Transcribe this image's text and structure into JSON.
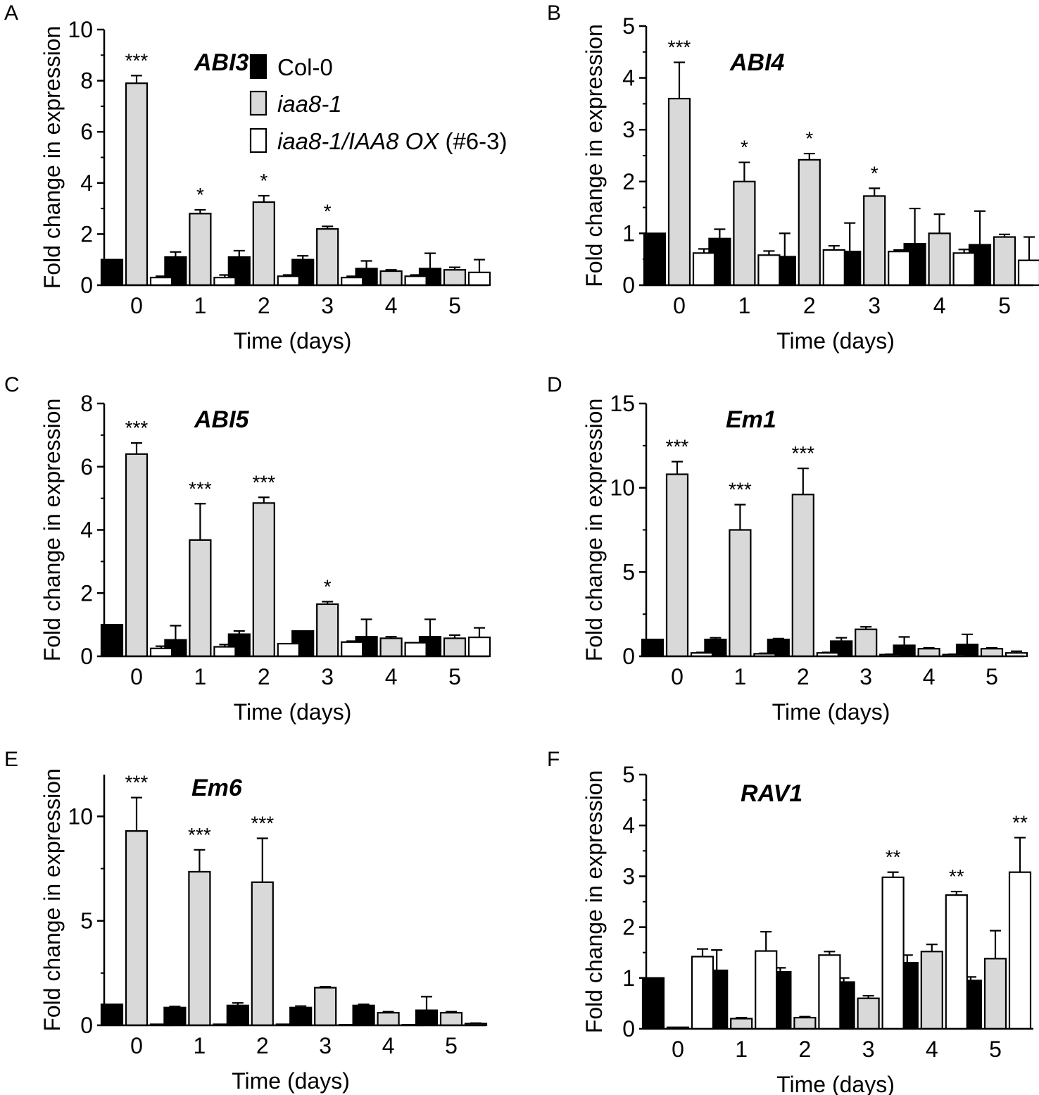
{
  "colors": {
    "col0": "#000000",
    "iaa8": "#d9d9d9",
    "ox": "#ffffff",
    "stroke": "#000000"
  },
  "legend": {
    "items": [
      {
        "label": "Col-0",
        "italic": false,
        "color_key": "col0"
      },
      {
        "label": "iaa8-1",
        "italic": true,
        "color_key": "iaa8"
      },
      {
        "label_italic": "iaa8-1/IAA8 OX",
        "label_plain": " (#6-3)",
        "color_key": "ox"
      }
    ]
  },
  "chart_data": [
    {
      "panel": "A",
      "type": "bar",
      "title": "ABI3",
      "xlabel": "Time (days)",
      "ylabel": "Fold change in expression",
      "categories": [
        "0",
        "1",
        "2",
        "3",
        "4",
        "5"
      ],
      "ylim": [
        0,
        10
      ],
      "yticks": [
        0,
        2,
        4,
        6,
        8,
        10
      ],
      "series": [
        {
          "name": "Col-0",
          "color_key": "col0",
          "values": [
            1.0,
            1.1,
            1.1,
            1.0,
            0.65,
            0.65
          ],
          "errors": [
            0.0,
            0.2,
            0.25,
            0.15,
            0.3,
            0.6
          ]
        },
        {
          "name": "iaa8-1",
          "color_key": "iaa8",
          "values": [
            7.9,
            2.8,
            3.25,
            2.2,
            0.55,
            0.6
          ],
          "errors": [
            0.3,
            0.15,
            0.25,
            0.1,
            0.05,
            0.1
          ]
        },
        {
          "name": "iaa8-1/IAA8 OX (#6-3)",
          "color_key": "ox",
          "values": [
            0.3,
            0.3,
            0.35,
            0.3,
            0.35,
            0.5
          ],
          "errors": [
            0.05,
            0.1,
            0.05,
            0.05,
            0.05,
            0.5
          ]
        }
      ],
      "significance": [
        {
          "x": "0",
          "label": "***"
        },
        {
          "x": "1",
          "label": "*"
        },
        {
          "x": "2",
          "label": "*"
        },
        {
          "x": "3",
          "label": "*"
        }
      ]
    },
    {
      "panel": "B",
      "type": "bar",
      "title": "ABI4",
      "xlabel": "Time (days)",
      "ylabel": "Fold change in expression",
      "categories": [
        "0",
        "1",
        "2",
        "3",
        "4",
        "5"
      ],
      "ylim": [
        0,
        5
      ],
      "yticks": [
        0,
        1,
        2,
        3,
        4,
        5
      ],
      "series": [
        {
          "name": "Col-0",
          "color_key": "col0",
          "values": [
            1.0,
            0.9,
            0.55,
            0.65,
            0.8,
            0.78
          ],
          "errors": [
            0.0,
            0.18,
            0.45,
            0.55,
            0.68,
            0.65
          ]
        },
        {
          "name": "iaa8-1",
          "color_key": "iaa8",
          "values": [
            3.6,
            2.0,
            2.42,
            1.72,
            1.0,
            0.93
          ],
          "errors": [
            0.7,
            0.37,
            0.12,
            0.15,
            0.37,
            0.05
          ]
        },
        {
          "name": "iaa8-1/IAA8 OX (#6-3)",
          "color_key": "ox",
          "values": [
            0.62,
            0.58,
            0.68,
            0.65,
            0.62,
            0.48
          ],
          "errors": [
            0.08,
            0.08,
            0.08,
            0.03,
            0.07,
            0.45
          ]
        }
      ],
      "significance": [
        {
          "x": "0",
          "label": "***"
        },
        {
          "x": "1",
          "label": "*"
        },
        {
          "x": "2",
          "label": "*"
        },
        {
          "x": "3",
          "label": "*"
        }
      ]
    },
    {
      "panel": "C",
      "type": "bar",
      "title": "ABI5",
      "xlabel": "Time (days)",
      "ylabel": "Fold change in expression",
      "categories": [
        "0",
        "1",
        "2",
        "3",
        "4",
        "5"
      ],
      "ylim": [
        0,
        8
      ],
      "yticks": [
        0,
        2,
        4,
        6,
        8
      ],
      "series": [
        {
          "name": "Col-0",
          "color_key": "col0",
          "values": [
            1.0,
            0.52,
            0.7,
            0.8,
            0.62,
            0.62
          ],
          "errors": [
            0.0,
            0.45,
            0.1,
            0.0,
            0.55,
            0.55
          ]
        },
        {
          "name": "iaa8-1",
          "color_key": "iaa8",
          "values": [
            6.4,
            3.68,
            4.85,
            1.65,
            0.57,
            0.57
          ],
          "errors": [
            0.35,
            1.15,
            0.18,
            0.08,
            0.05,
            0.1
          ]
        },
        {
          "name": "iaa8-1/IAA8 OX (#6-3)",
          "color_key": "ox",
          "values": [
            0.25,
            0.3,
            0.4,
            0.45,
            0.43,
            0.6
          ],
          "errors": [
            0.07,
            0.07,
            0.0,
            0.03,
            0.0,
            0.3
          ]
        }
      ],
      "significance": [
        {
          "x": "0",
          "label": "***"
        },
        {
          "x": "1",
          "label": "***"
        },
        {
          "x": "2",
          "label": "***"
        },
        {
          "x": "3",
          "label": "*"
        }
      ]
    },
    {
      "panel": "D",
      "type": "bar",
      "title": "Em1",
      "xlabel": "Time (days)",
      "ylabel": "Fold change in expression",
      "categories": [
        "0",
        "1",
        "2",
        "3",
        "4",
        "5"
      ],
      "ylim": [
        0,
        15
      ],
      "yticks": [
        0,
        5,
        10,
        15
      ],
      "series": [
        {
          "name": "Col-0",
          "color_key": "col0",
          "values": [
            1.0,
            1.0,
            1.0,
            0.9,
            0.65,
            0.7
          ],
          "errors": [
            0.0,
            0.1,
            0.05,
            0.2,
            0.5,
            0.6
          ]
        },
        {
          "name": "iaa8-1",
          "color_key": "iaa8",
          "values": [
            10.8,
            7.5,
            9.6,
            1.6,
            0.45,
            0.45
          ],
          "errors": [
            0.75,
            1.5,
            1.55,
            0.15,
            0.05,
            0.05
          ]
        },
        {
          "name": "iaa8-1/IAA8 OX (#6-3)",
          "color_key": "ox",
          "values": [
            0.2,
            0.15,
            0.2,
            0.1,
            0.1,
            0.2
          ],
          "errors": [
            0.03,
            0.03,
            0.03,
            0.02,
            0.02,
            0.1
          ]
        }
      ],
      "significance": [
        {
          "x": "0",
          "label": "***"
        },
        {
          "x": "1",
          "label": "***"
        },
        {
          "x": "2",
          "label": "***"
        }
      ]
    },
    {
      "panel": "E",
      "type": "bar",
      "title": "Em6",
      "xlabel": "Time (days)",
      "ylabel": "Fold change in expression",
      "categories": [
        "0",
        "1",
        "2",
        "3",
        "4",
        "5"
      ],
      "ylim": [
        0,
        12
      ],
      "yticks": [
        0,
        5,
        10
      ],
      "series": [
        {
          "name": "Col-0",
          "color_key": "col0",
          "values": [
            1.0,
            0.85,
            0.95,
            0.85,
            0.95,
            0.72
          ],
          "errors": [
            0.0,
            0.05,
            0.12,
            0.07,
            0.05,
            0.65
          ]
        },
        {
          "name": "iaa8-1",
          "color_key": "iaa8",
          "values": [
            9.3,
            7.35,
            6.85,
            1.8,
            0.6,
            0.6
          ],
          "errors": [
            1.6,
            1.05,
            2.1,
            0.05,
            0.05,
            0.05
          ]
        },
        {
          "name": "iaa8-1/IAA8 OX (#6-3)",
          "color_key": "ox",
          "values": [
            0.05,
            0.05,
            0.05,
            0.03,
            0.03,
            0.08
          ],
          "errors": [
            0.0,
            0.0,
            0.0,
            0.0,
            0.0,
            0.02
          ]
        }
      ],
      "significance": [
        {
          "x": "0",
          "label": "***"
        },
        {
          "x": "1",
          "label": "***"
        },
        {
          "x": "2",
          "label": "***"
        }
      ]
    },
    {
      "panel": "F",
      "type": "bar",
      "title": "RAV1",
      "xlabel": "Time (days)",
      "ylabel": "Fold change in expression",
      "categories": [
        "0",
        "1",
        "2",
        "3",
        "4",
        "5"
      ],
      "ylim": [
        0,
        5
      ],
      "yticks": [
        0,
        1,
        2,
        3,
        4,
        5
      ],
      "series": [
        {
          "name": "Col-0",
          "color_key": "col0",
          "values": [
            1.0,
            1.15,
            1.12,
            0.92,
            1.3,
            0.95
          ],
          "errors": [
            0.0,
            0.4,
            0.08,
            0.08,
            0.15,
            0.07
          ]
        },
        {
          "name": "iaa8-1",
          "color_key": "iaa8",
          "values": [
            0.03,
            0.2,
            0.22,
            0.6,
            1.52,
            1.38
          ],
          "errors": [
            0.0,
            0.02,
            0.02,
            0.05,
            0.14,
            0.55
          ]
        },
        {
          "name": "iaa8-1/IAA8 OX (#6-3)",
          "color_key": "ox",
          "values": [
            1.42,
            1.53,
            1.45,
            2.98,
            2.63,
            3.08
          ],
          "errors": [
            0.15,
            0.38,
            0.07,
            0.1,
            0.07,
            0.68
          ]
        }
      ],
      "significance": [
        {
          "x": "3",
          "label": "**"
        },
        {
          "x": "4",
          "label": "**"
        },
        {
          "x": "5",
          "label": "**"
        }
      ]
    }
  ]
}
